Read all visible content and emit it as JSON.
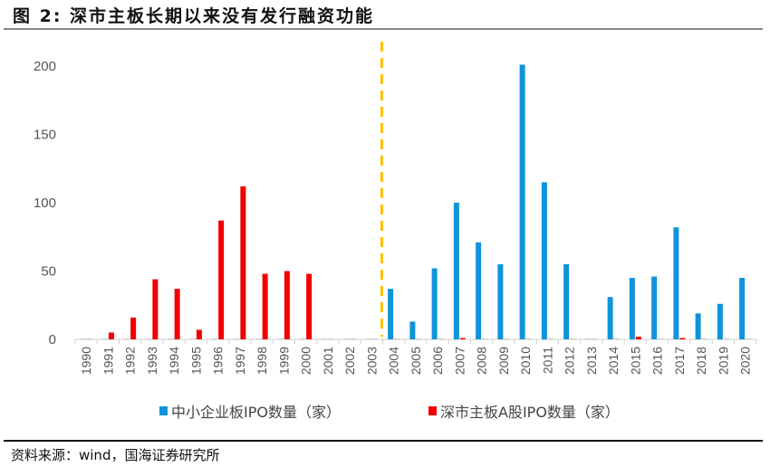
{
  "title": "图 2:  深市主板长期以来没有发行融资功能",
  "source": "资料来源：wind，国海证券研究所",
  "chart_data": {
    "type": "bar",
    "title": "图 2:  深市主板长期以来没有发行融资功能",
    "xlabel": "",
    "ylabel": "",
    "ylim": [
      0,
      200
    ],
    "yticks": [
      0,
      50,
      100,
      150,
      200
    ],
    "grid": false,
    "legend": "bottom",
    "categories": [
      "1990",
      "1991",
      "1992",
      "1993",
      "1994",
      "1995",
      "1996",
      "1997",
      "1998",
      "1999",
      "2000",
      "2001",
      "2002",
      "2003",
      "2004",
      "2005",
      "2006",
      "2007",
      "2008",
      "2009",
      "2010",
      "2011",
      "2012",
      "2013",
      "2014",
      "2015",
      "2016",
      "2017",
      "2018",
      "2019",
      "2020"
    ],
    "series": [
      {
        "name": "中小企业板IPO数量（家）",
        "color": "#0F94DB",
        "values": [
          0,
          0,
          0,
          0,
          0,
          0,
          0,
          0,
          0,
          0,
          0,
          0,
          0,
          0,
          37,
          13,
          52,
          100,
          71,
          55,
          201,
          115,
          55,
          0,
          31,
          45,
          46,
          82,
          19,
          26,
          45
        ]
      },
      {
        "name": "深市主板A股IPO数量（家）",
        "color": "#F00000",
        "values": [
          0,
          5,
          16,
          44,
          37,
          7,
          87,
          112,
          48,
          50,
          48,
          0,
          0,
          0,
          0,
          0,
          0,
          1,
          0,
          0,
          0,
          0,
          0,
          0,
          0,
          2,
          0,
          1,
          0,
          0,
          0
        ]
      }
    ],
    "annotations": [
      {
        "type": "dashed-vertical-line",
        "between": [
          "2003",
          "2004"
        ],
        "color": "#FFC000"
      }
    ]
  }
}
